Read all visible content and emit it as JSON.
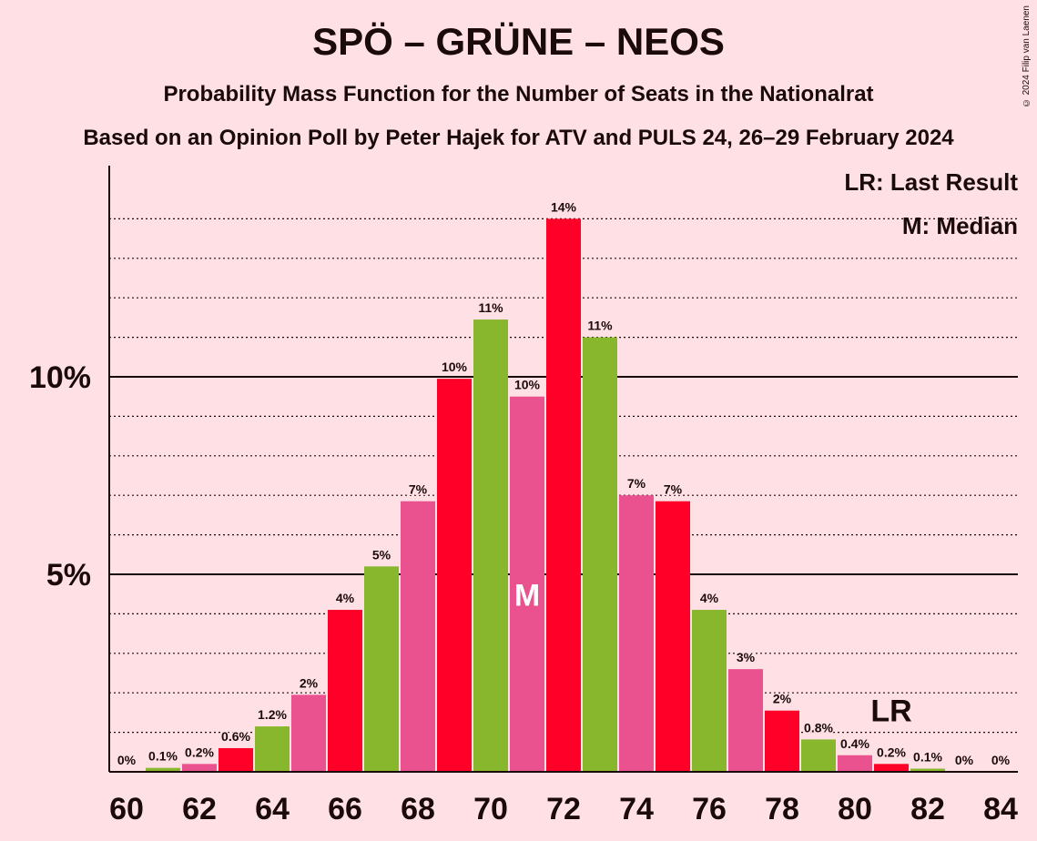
{
  "title": "SPÖ – GRÜNE – NEOS",
  "subtitle": "Probability Mass Function for the Number of Seats in the Nationalrat",
  "subtitle2": "Based on an Opinion Poll by Peter Hajek for ATV and PULS 24, 26–29 February 2024",
  "copyright": "© 2024 Filip van Laenen",
  "legend": {
    "lr": "LR: Last Result",
    "median": "M: Median"
  },
  "colors": {
    "background": "#ffe1e5",
    "red": "#ff0028",
    "green": "#88b62c",
    "pink": "#ea528f"
  },
  "chart_data": {
    "type": "bar",
    "x": [
      60,
      61,
      62,
      63,
      64,
      65,
      66,
      67,
      68,
      69,
      70,
      71,
      72,
      73,
      74,
      75,
      76,
      77,
      78,
      79,
      80,
      81,
      82,
      83,
      84
    ],
    "values": [
      0,
      0.1,
      0.2,
      0.6,
      1.15,
      1.95,
      4.1,
      5.2,
      6.85,
      9.95,
      11.45,
      9.5,
      14.0,
      11.0,
      7.0,
      6.85,
      4.1,
      2.6,
      1.55,
      0.82,
      0.42,
      0.2,
      0.08,
      0,
      0
    ],
    "labels": [
      "0%",
      "0.1%",
      "0.2%",
      "0.6%",
      "1.2%",
      "2%",
      "4%",
      "5%",
      "7%",
      "10%",
      "11%",
      "10%",
      "14%",
      "11%",
      "7%",
      "7%",
      "4%",
      "3%",
      "2%",
      "0.8%",
      "0.4%",
      "0.2%",
      "0.1%",
      "0%",
      "0%"
    ],
    "bar_colors": [
      "pink",
      "green",
      "pink",
      "red",
      "green",
      "pink",
      "red",
      "green",
      "pink",
      "red",
      "green",
      "pink",
      "red",
      "green",
      "pink",
      "red",
      "green",
      "pink",
      "red",
      "green",
      "pink",
      "red",
      "green",
      "pink",
      "red"
    ],
    "x_tick_labels": [
      "60",
      "62",
      "64",
      "66",
      "68",
      "70",
      "72",
      "74",
      "76",
      "78",
      "80",
      "82",
      "84"
    ],
    "y_tick_labels": [
      {
        "value": 5,
        "label": "5%"
      },
      {
        "value": 10,
        "label": "10%"
      }
    ],
    "ylim": [
      0,
      15.5
    ],
    "grid": "dotted every 1%",
    "median_seat": 71,
    "median_marker": "M",
    "last_result_seat": 81,
    "last_result_marker": "LR",
    "legend_position": "top-right"
  }
}
